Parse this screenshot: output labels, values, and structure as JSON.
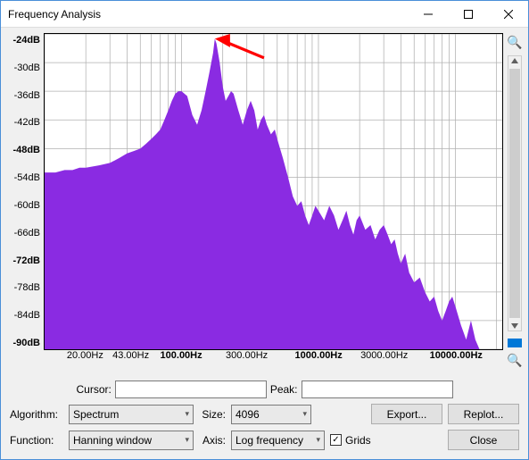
{
  "window": {
    "title": "Frequency Analysis"
  },
  "chart": {
    "type": "area",
    "fill_color": "#8a2be2",
    "background_color": "#ffffff",
    "grid_color": "#b0b0b0",
    "ylim": [
      -90,
      -24
    ],
    "ytick_step": 6,
    "yticks": [
      {
        "v": -24,
        "label": "-24dB",
        "bold": true
      },
      {
        "v": -30,
        "label": "-30dB",
        "bold": false
      },
      {
        "v": -36,
        "label": "-36dB",
        "bold": false
      },
      {
        "v": -42,
        "label": "-42dB",
        "bold": false
      },
      {
        "v": -48,
        "label": "-48dB",
        "bold": true
      },
      {
        "v": -54,
        "label": "-54dB",
        "bold": false
      },
      {
        "v": -60,
        "label": "-60dB",
        "bold": false
      },
      {
        "v": -66,
        "label": "-66dB",
        "bold": false
      },
      {
        "v": -72,
        "label": "-72dB",
        "bold": true
      },
      {
        "v": -78,
        "label": "-78dB",
        "bold": false
      },
      {
        "v": -84,
        "label": "-84dB",
        "bold": false
      },
      {
        "v": -90,
        "label": "-90dB",
        "bold": true
      }
    ],
    "xaxis": "log",
    "xticks": [
      {
        "f": 20,
        "label": "20.00Hz",
        "bold": false
      },
      {
        "f": 43,
        "label": "43.00Hz",
        "bold": false
      },
      {
        "f": 100,
        "label": "100.00Hz",
        "bold": true
      },
      {
        "f": 300,
        "label": "300.00Hz",
        "bold": false
      },
      {
        "f": 1000,
        "label": "1000.00Hz",
        "bold": true
      },
      {
        "f": 3000,
        "label": "3000.00Hz",
        "bold": false
      },
      {
        "f": 10000,
        "label": "10000.00Hz",
        "bold": true
      }
    ],
    "xgrid": [
      10,
      20,
      30,
      40,
      50,
      60,
      70,
      80,
      90,
      100,
      200,
      300,
      400,
      500,
      600,
      700,
      800,
      900,
      1000,
      2000,
      3000,
      4000,
      5000,
      6000,
      7000,
      8000,
      9000,
      10000,
      20000
    ],
    "xrange": [
      10,
      22000
    ],
    "data": [
      [
        10,
        -53
      ],
      [
        12,
        -53
      ],
      [
        14,
        -52.5
      ],
      [
        16,
        -52.5
      ],
      [
        18,
        -52
      ],
      [
        20,
        -52
      ],
      [
        25,
        -51.5
      ],
      [
        30,
        -51
      ],
      [
        35,
        -50
      ],
      [
        40,
        -49
      ],
      [
        45,
        -48.5
      ],
      [
        50,
        -48
      ],
      [
        55,
        -47
      ],
      [
        60,
        -46
      ],
      [
        65,
        -45
      ],
      [
        70,
        -44
      ],
      [
        75,
        -42
      ],
      [
        80,
        -40
      ],
      [
        85,
        -38
      ],
      [
        90,
        -36.5
      ],
      [
        95,
        -36
      ],
      [
        100,
        -36
      ],
      [
        110,
        -37
      ],
      [
        120,
        -41
      ],
      [
        130,
        -43
      ],
      [
        140,
        -40
      ],
      [
        150,
        -36
      ],
      [
        160,
        -32
      ],
      [
        170,
        -28
      ],
      [
        175,
        -25
      ],
      [
        180,
        -26
      ],
      [
        190,
        -30
      ],
      [
        200,
        -35
      ],
      [
        210,
        -38
      ],
      [
        220,
        -37
      ],
      [
        230,
        -36
      ],
      [
        240,
        -36.5
      ],
      [
        260,
        -40
      ],
      [
        280,
        -43
      ],
      [
        300,
        -40
      ],
      [
        320,
        -38
      ],
      [
        340,
        -40
      ],
      [
        360,
        -44
      ],
      [
        380,
        -42
      ],
      [
        400,
        -41
      ],
      [
        420,
        -43
      ],
      [
        450,
        -45
      ],
      [
        480,
        -44
      ],
      [
        500,
        -46
      ],
      [
        550,
        -50
      ],
      [
        600,
        -54
      ],
      [
        650,
        -58
      ],
      [
        700,
        -60
      ],
      [
        750,
        -59
      ],
      [
        800,
        -62
      ],
      [
        850,
        -64
      ],
      [
        900,
        -62
      ],
      [
        950,
        -60
      ],
      [
        1000,
        -61
      ],
      [
        1100,
        -63
      ],
      [
        1200,
        -60
      ],
      [
        1300,
        -62
      ],
      [
        1400,
        -65
      ],
      [
        1500,
        -63
      ],
      [
        1600,
        -61
      ],
      [
        1700,
        -64
      ],
      [
        1800,
        -66
      ],
      [
        1900,
        -63
      ],
      [
        2000,
        -62
      ],
      [
        2200,
        -65
      ],
      [
        2400,
        -64
      ],
      [
        2600,
        -67
      ],
      [
        2800,
        -65
      ],
      [
        3000,
        -64
      ],
      [
        3200,
        -66
      ],
      [
        3400,
        -68
      ],
      [
        3600,
        -67
      ],
      [
        3800,
        -70
      ],
      [
        4000,
        -72
      ],
      [
        4300,
        -70
      ],
      [
        4600,
        -74
      ],
      [
        5000,
        -76
      ],
      [
        5500,
        -75
      ],
      [
        6000,
        -78
      ],
      [
        6500,
        -80
      ],
      [
        7000,
        -79
      ],
      [
        7500,
        -82
      ],
      [
        8000,
        -84
      ],
      [
        8500,
        -82
      ],
      [
        9000,
        -80
      ],
      [
        9500,
        -79
      ],
      [
        10000,
        -81
      ],
      [
        11000,
        -85
      ],
      [
        12000,
        -88
      ],
      [
        13000,
        -84
      ],
      [
        14000,
        -88
      ],
      [
        15000,
        -90
      ],
      [
        16000,
        -90
      ],
      [
        18000,
        -90
      ],
      [
        20000,
        -90
      ],
      [
        22000,
        -90
      ]
    ],
    "arrow": {
      "color": "#ff0000",
      "tip_x": 175,
      "tip_y": -25,
      "tail_x": 400,
      "tail_y": -29
    }
  },
  "info": {
    "cursor_label": "Cursor:",
    "cursor_value": "",
    "peak_label": "Peak:",
    "peak_value": ""
  },
  "controls": {
    "algorithm_label": "Algorithm:",
    "algorithm_value": "Spectrum",
    "size_label": "Size:",
    "size_value": "4096",
    "function_label": "Function:",
    "function_value": "Hanning window",
    "axis_label": "Axis:",
    "axis_value": "Log frequency",
    "grids_label": "Grids",
    "grids_checked": true,
    "export_label": "Export...",
    "replot_label": "Replot...",
    "close_label": "Close"
  }
}
